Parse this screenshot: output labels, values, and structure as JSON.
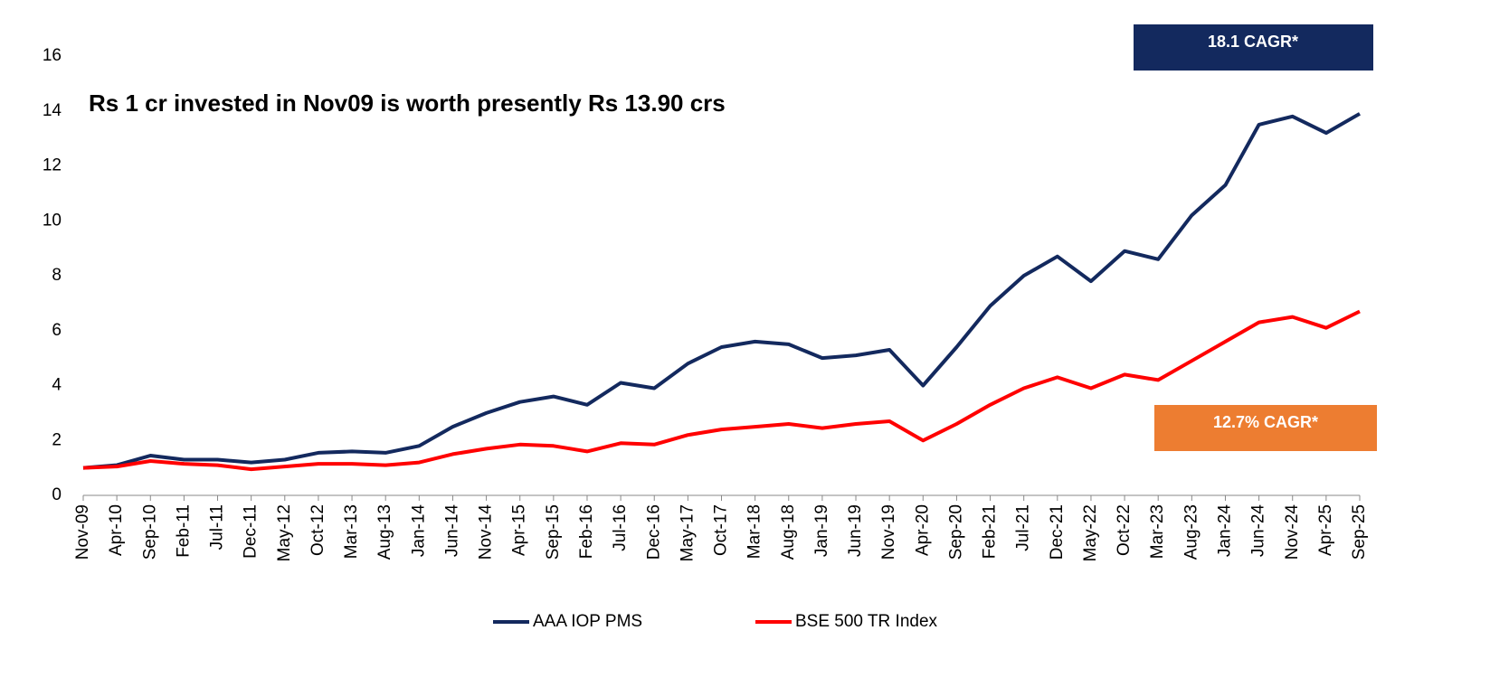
{
  "chart_data": {
    "type": "line",
    "annotations": [
      "Rs 1 cr invested in Nov09 is worth presently Rs 13.90 crs",
      "18.1 CAGR*",
      "12.7% CAGR*"
    ],
    "annotation_colors": [
      "#13295e",
      "#13295e",
      "#ed7d31"
    ],
    "x": [
      "Nov-09",
      "Apr-10",
      "Sep-10",
      "Feb-11",
      "Jul-11",
      "Dec-11",
      "May-12",
      "Oct-12",
      "Mar-13",
      "Aug-13",
      "Jan-14",
      "Jun-14",
      "Nov-14",
      "Apr-15",
      "Sep-15",
      "Feb-16",
      "Jul-16",
      "Dec-16",
      "May-17",
      "Oct-17",
      "Mar-18",
      "Aug-18",
      "Jan-19",
      "Jun-19",
      "Nov-19",
      "Apr-20",
      "Sep-20",
      "Feb-21",
      "Jul-21",
      "Dec-21",
      "May-22",
      "Oct-22",
      "Mar-23",
      "Aug-23",
      "Jan-24",
      "Jun-24",
      "Nov-24",
      "Apr-25",
      "Sep-25"
    ],
    "series": [
      {
        "name": "AAA IOP PMS",
        "color": "#13295e",
        "values": [
          1.0,
          1.1,
          1.45,
          1.3,
          1.3,
          1.2,
          1.3,
          1.55,
          1.6,
          1.55,
          1.8,
          2.5,
          3.0,
          3.4,
          3.6,
          3.3,
          4.1,
          3.9,
          4.8,
          5.4,
          5.6,
          5.5,
          5.0,
          5.1,
          5.3,
          4.0,
          5.4,
          6.9,
          8.0,
          8.7,
          7.8,
          8.9,
          8.6,
          10.2,
          11.3,
          13.5,
          13.8,
          13.2,
          13.9
        ]
      },
      {
        "name": "BSE 500 TR Index",
        "color": "#ff0000",
        "values": [
          1.0,
          1.05,
          1.25,
          1.15,
          1.1,
          0.95,
          1.05,
          1.15,
          1.15,
          1.1,
          1.2,
          1.5,
          1.7,
          1.85,
          1.8,
          1.6,
          1.9,
          1.85,
          2.2,
          2.4,
          2.5,
          2.6,
          2.45,
          2.6,
          2.7,
          2.0,
          2.6,
          3.3,
          3.9,
          4.3,
          3.9,
          4.4,
          4.2,
          4.9,
          5.6,
          6.3,
          6.5,
          6.1,
          6.7
        ]
      }
    ],
    "ylim": [
      0,
      16
    ],
    "yticks": [
      0,
      2,
      4,
      6,
      8,
      10,
      12,
      14,
      16
    ],
    "grid": false
  }
}
